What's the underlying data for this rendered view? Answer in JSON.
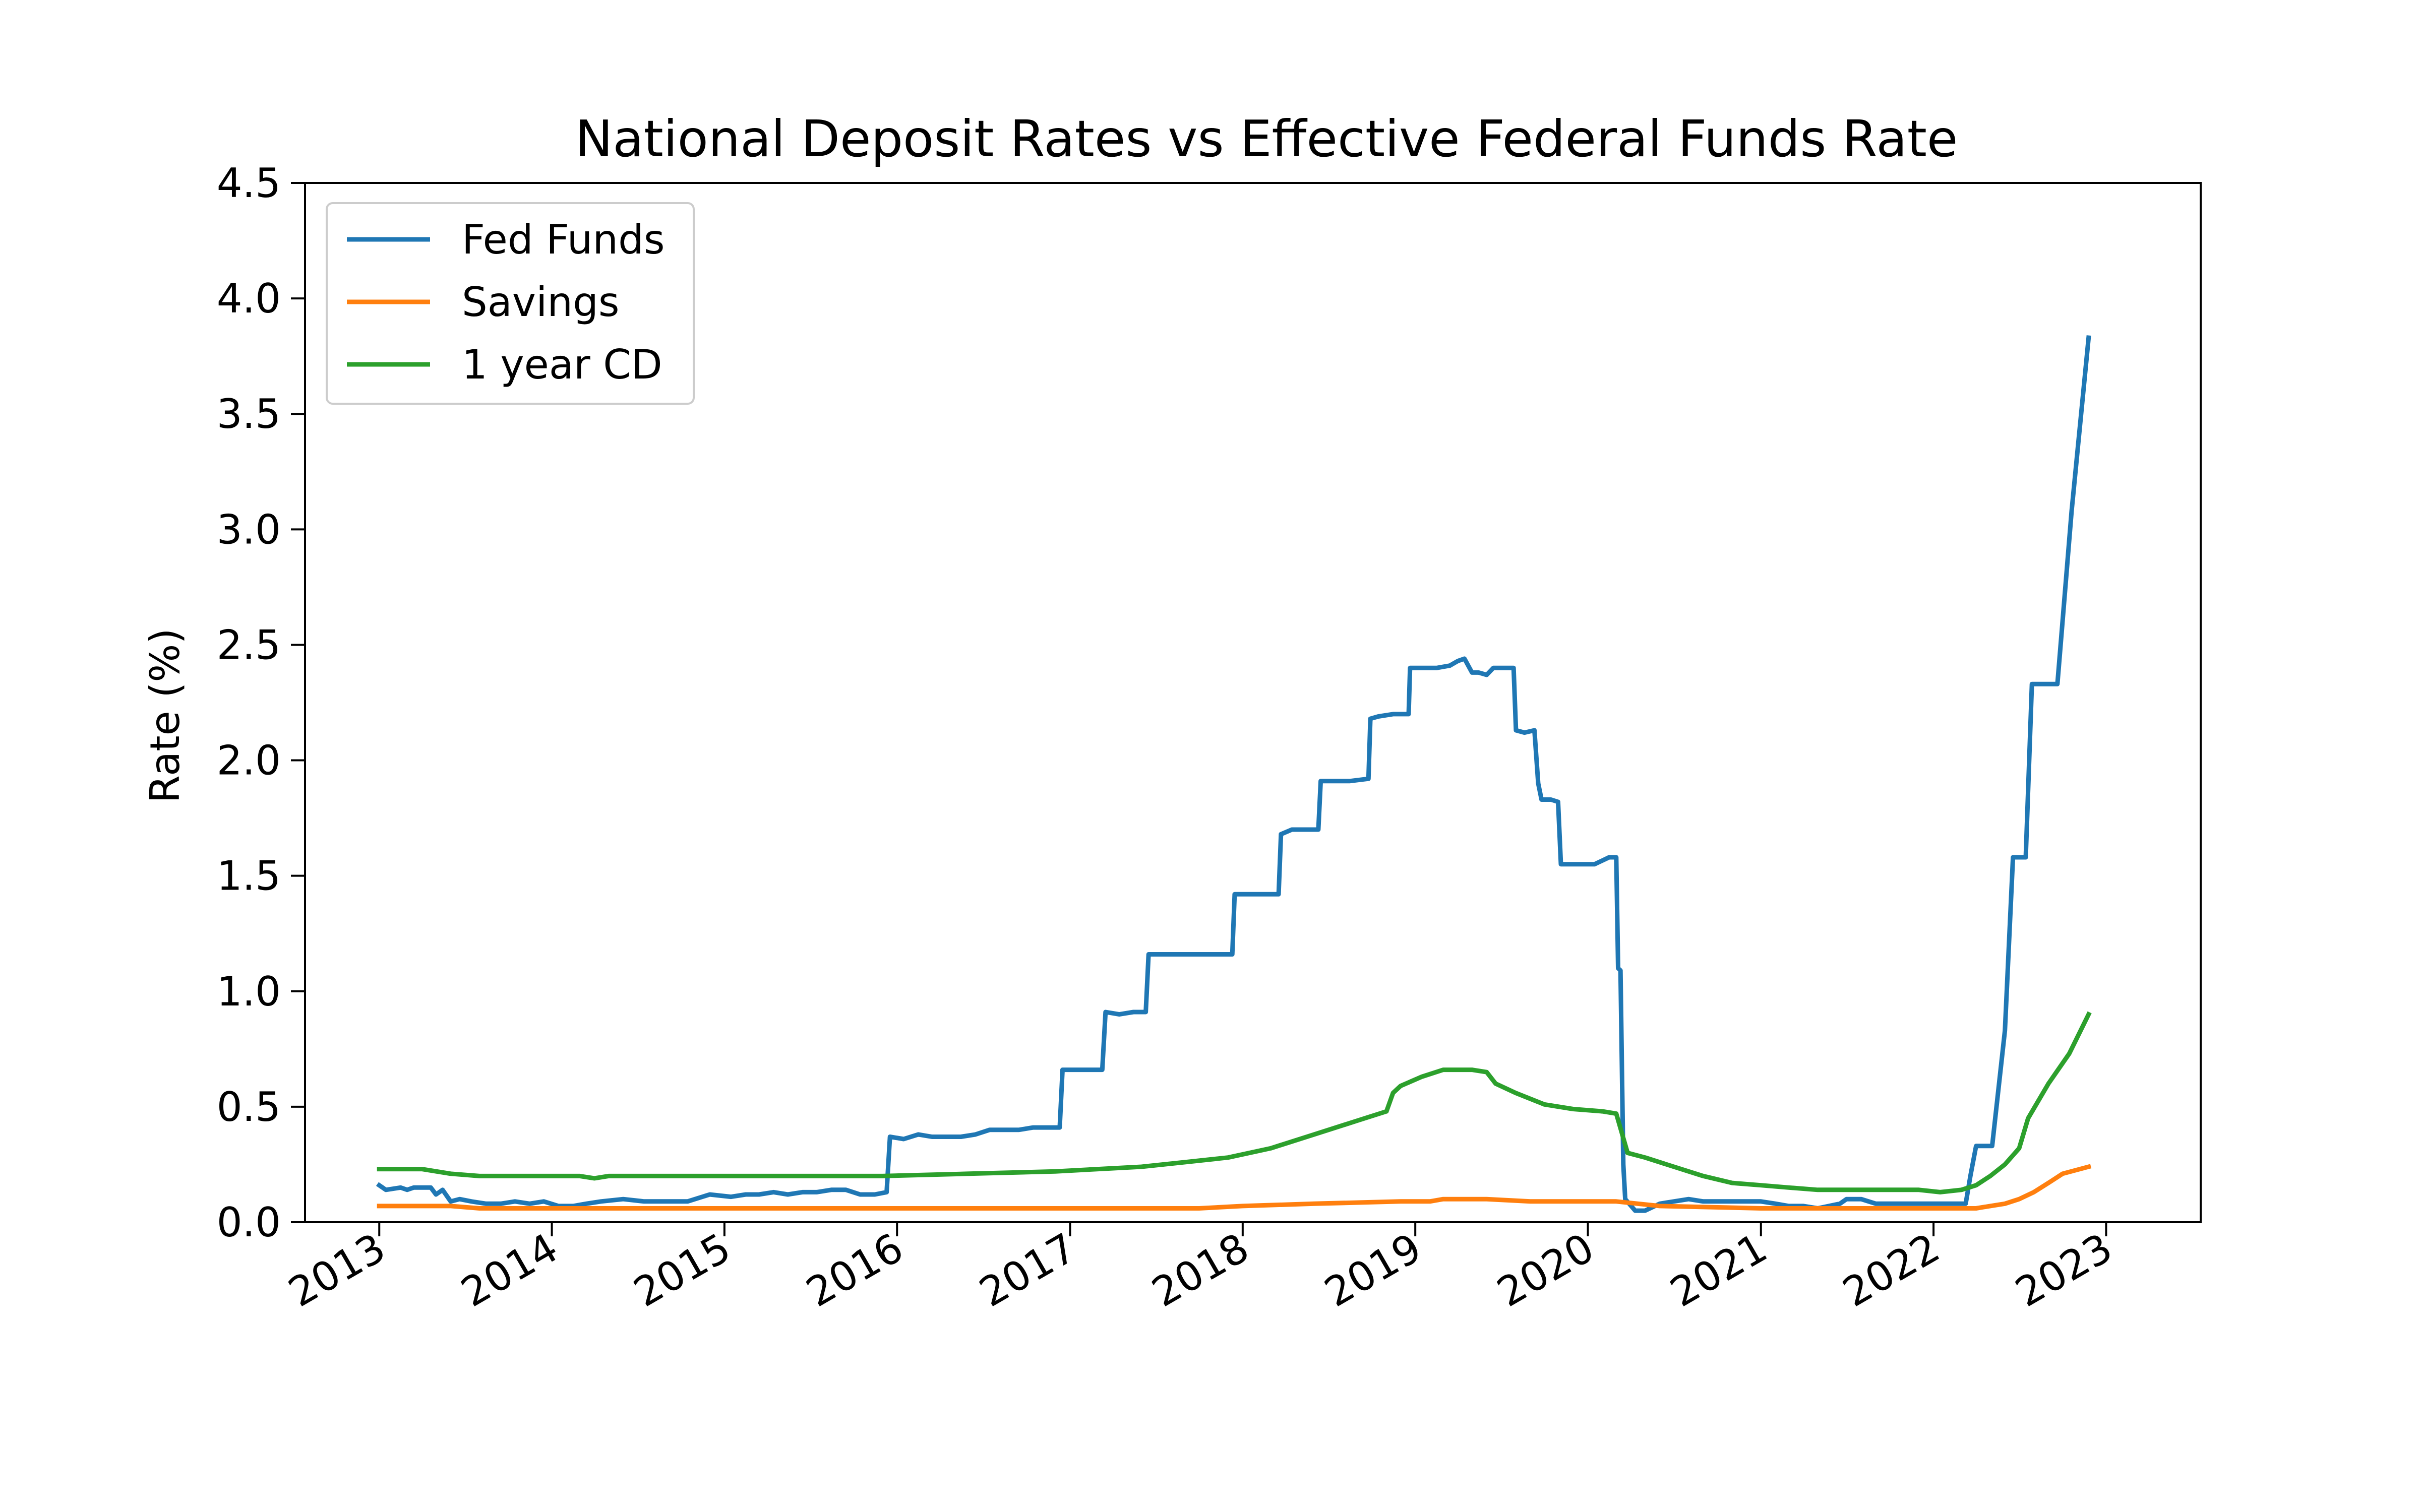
{
  "chart_data": {
    "type": "line",
    "title": "National Deposit Rates vs Effective Federal Funds Rate",
    "xlabel": "",
    "ylabel": "Rate (%)",
    "xlim": [
      "2012-07-28",
      "2023-07-20"
    ],
    "ylim": [
      0.0,
      4.5
    ],
    "x_ticks": [
      "2013",
      "2014",
      "2015",
      "2016",
      "2017",
      "2018",
      "2019",
      "2020",
      "2021",
      "2022",
      "2023"
    ],
    "y_ticks": [
      "0.0",
      "0.5",
      "1.0",
      "1.5",
      "2.0",
      "2.5",
      "3.0",
      "3.5",
      "4.0",
      "4.5"
    ],
    "grid": false,
    "legend_position": "upper-left",
    "series": [
      {
        "name": "Fed Funds",
        "color": "#1f77b4",
        "points": [
          [
            "2013-01-01",
            0.16
          ],
          [
            "2013-01-15",
            0.14
          ],
          [
            "2013-02-15",
            0.15
          ],
          [
            "2013-03-01",
            0.14
          ],
          [
            "2013-03-15",
            0.15
          ],
          [
            "2013-04-01",
            0.15
          ],
          [
            "2013-04-20",
            0.15
          ],
          [
            "2013-05-01",
            0.12
          ],
          [
            "2013-05-15",
            0.14
          ],
          [
            "2013-06-01",
            0.09
          ],
          [
            "2013-06-20",
            0.1
          ],
          [
            "2013-07-15",
            0.09
          ],
          [
            "2013-08-15",
            0.08
          ],
          [
            "2013-09-15",
            0.08
          ],
          [
            "2013-10-15",
            0.09
          ],
          [
            "2013-11-15",
            0.08
          ],
          [
            "2013-12-15",
            0.09
          ],
          [
            "2014-01-15",
            0.07
          ],
          [
            "2014-02-15",
            0.07
          ],
          [
            "2014-03-15",
            0.08
          ],
          [
            "2014-04-15",
            0.09
          ],
          [
            "2014-06-01",
            0.1
          ],
          [
            "2014-07-15",
            0.09
          ],
          [
            "2014-09-01",
            0.09
          ],
          [
            "2014-10-15",
            0.09
          ],
          [
            "2014-12-01",
            0.12
          ],
          [
            "2015-01-15",
            0.11
          ],
          [
            "2015-02-15",
            0.12
          ],
          [
            "2015-03-15",
            0.12
          ],
          [
            "2015-04-15",
            0.13
          ],
          [
            "2015-05-15",
            0.12
          ],
          [
            "2015-06-15",
            0.13
          ],
          [
            "2015-07-15",
            0.13
          ],
          [
            "2015-08-15",
            0.14
          ],
          [
            "2015-09-15",
            0.14
          ],
          [
            "2015-10-15",
            0.12
          ],
          [
            "2015-11-15",
            0.12
          ],
          [
            "2015-12-10",
            0.13
          ],
          [
            "2015-12-17",
            0.37
          ],
          [
            "2016-01-15",
            0.36
          ],
          [
            "2016-02-15",
            0.38
          ],
          [
            "2016-03-15",
            0.37
          ],
          [
            "2016-04-15",
            0.37
          ],
          [
            "2016-05-15",
            0.37
          ],
          [
            "2016-06-15",
            0.38
          ],
          [
            "2016-07-15",
            0.4
          ],
          [
            "2016-08-15",
            0.4
          ],
          [
            "2016-09-15",
            0.4
          ],
          [
            "2016-10-15",
            0.41
          ],
          [
            "2016-11-15",
            0.41
          ],
          [
            "2016-12-10",
            0.41
          ],
          [
            "2016-12-16",
            0.66
          ],
          [
            "2017-01-15",
            0.66
          ],
          [
            "2017-02-15",
            0.66
          ],
          [
            "2017-03-10",
            0.66
          ],
          [
            "2017-03-17",
            0.91
          ],
          [
            "2017-04-15",
            0.9
          ],
          [
            "2017-05-15",
            0.91
          ],
          [
            "2017-06-10",
            0.91
          ],
          [
            "2017-06-16",
            1.16
          ],
          [
            "2017-08-15",
            1.16
          ],
          [
            "2017-10-15",
            1.16
          ],
          [
            "2017-12-10",
            1.16
          ],
          [
            "2017-12-15",
            1.42
          ],
          [
            "2018-01-15",
            1.42
          ],
          [
            "2018-02-15",
            1.42
          ],
          [
            "2018-03-18",
            1.42
          ],
          [
            "2018-03-23",
            1.68
          ],
          [
            "2018-04-15",
            1.7
          ],
          [
            "2018-05-15",
            1.7
          ],
          [
            "2018-06-10",
            1.7
          ],
          [
            "2018-06-15",
            1.91
          ],
          [
            "2018-07-15",
            1.91
          ],
          [
            "2018-08-15",
            1.91
          ],
          [
            "2018-09-24",
            1.92
          ],
          [
            "2018-09-28",
            2.18
          ],
          [
            "2018-10-15",
            2.19
          ],
          [
            "2018-11-15",
            2.2
          ],
          [
            "2018-12-18",
            2.2
          ],
          [
            "2018-12-21",
            2.4
          ],
          [
            "2019-01-15",
            2.4
          ],
          [
            "2019-02-15",
            2.4
          ],
          [
            "2019-03-15",
            2.41
          ],
          [
            "2019-04-01",
            2.43
          ],
          [
            "2019-04-15",
            2.44
          ],
          [
            "2019-05-01",
            2.38
          ],
          [
            "2019-05-15",
            2.38
          ],
          [
            "2019-06-01",
            2.37
          ],
          [
            "2019-06-15",
            2.4
          ],
          [
            "2019-07-01",
            2.4
          ],
          [
            "2019-07-28",
            2.4
          ],
          [
            "2019-08-02",
            2.13
          ],
          [
            "2019-08-20",
            2.12
          ],
          [
            "2019-09-10",
            2.13
          ],
          [
            "2019-09-18",
            1.9
          ],
          [
            "2019-09-25",
            1.83
          ],
          [
            "2019-10-15",
            1.83
          ],
          [
            "2019-10-30",
            1.82
          ],
          [
            "2019-11-05",
            1.55
          ],
          [
            "2019-12-15",
            1.55
          ],
          [
            "2020-01-15",
            1.55
          ],
          [
            "2020-02-15",
            1.58
          ],
          [
            "2020-03-01",
            1.58
          ],
          [
            "2020-03-05",
            1.1
          ],
          [
            "2020-03-10",
            1.09
          ],
          [
            "2020-03-16",
            0.25
          ],
          [
            "2020-03-20",
            0.1
          ],
          [
            "2020-04-10",
            0.05
          ],
          [
            "2020-05-01",
            0.05
          ],
          [
            "2020-06-01",
            0.08
          ],
          [
            "2020-07-01",
            0.09
          ],
          [
            "2020-08-01",
            0.1
          ],
          [
            "2020-09-01",
            0.09
          ],
          [
            "2020-10-01",
            0.09
          ],
          [
            "2020-11-01",
            0.09
          ],
          [
            "2020-12-01",
            0.09
          ],
          [
            "2021-01-01",
            0.09
          ],
          [
            "2021-02-01",
            0.08
          ],
          [
            "2021-03-01",
            0.07
          ],
          [
            "2021-04-01",
            0.07
          ],
          [
            "2021-05-01",
            0.06
          ],
          [
            "2021-06-17",
            0.08
          ],
          [
            "2021-07-01",
            0.1
          ],
          [
            "2021-08-01",
            0.1
          ],
          [
            "2021-09-01",
            0.08
          ],
          [
            "2021-11-01",
            0.08
          ],
          [
            "2022-01-01",
            0.08
          ],
          [
            "2022-02-01",
            0.08
          ],
          [
            "2022-03-10",
            0.08
          ],
          [
            "2022-03-20",
            0.2
          ],
          [
            "2022-04-01",
            0.33
          ],
          [
            "2022-05-01",
            0.33
          ],
          [
            "2022-05-05",
            0.33
          ],
          [
            "2022-06-01",
            0.83
          ],
          [
            "2022-06-18",
            1.58
          ],
          [
            "2022-07-15",
            1.58
          ],
          [
            "2022-07-28",
            2.33
          ],
          [
            "2022-09-20",
            2.33
          ],
          [
            "2022-10-20",
            3.08
          ],
          [
            "2022-11-25",
            3.83
          ]
        ]
      },
      {
        "name": "Savings",
        "color": "#ff7f0e",
        "points": [
          [
            "2013-01-01",
            0.07
          ],
          [
            "2013-06-01",
            0.07
          ],
          [
            "2013-08-01",
            0.06
          ],
          [
            "2014-12-01",
            0.06
          ],
          [
            "2016-06-01",
            0.06
          ],
          [
            "2017-10-01",
            0.06
          ],
          [
            "2018-01-01",
            0.07
          ],
          [
            "2018-06-01",
            0.08
          ],
          [
            "2018-12-01",
            0.09
          ],
          [
            "2019-02-01",
            0.09
          ],
          [
            "2019-03-01",
            0.1
          ],
          [
            "2019-06-01",
            0.1
          ],
          [
            "2019-09-01",
            0.09
          ],
          [
            "2020-03-01",
            0.09
          ],
          [
            "2020-06-01",
            0.07
          ],
          [
            "2021-01-01",
            0.06
          ],
          [
            "2021-06-01",
            0.06
          ],
          [
            "2022-01-01",
            0.06
          ],
          [
            "2022-04-01",
            0.06
          ],
          [
            "2022-05-01",
            0.07
          ],
          [
            "2022-06-01",
            0.08
          ],
          [
            "2022-07-01",
            0.1
          ],
          [
            "2022-08-01",
            0.13
          ],
          [
            "2022-09-01",
            0.17
          ],
          [
            "2022-10-01",
            0.21
          ],
          [
            "2022-11-25",
            0.24
          ]
        ]
      },
      {
        "name": "1 year CD",
        "color": "#2ca02c",
        "points": [
          [
            "2013-01-01",
            0.23
          ],
          [
            "2013-04-01",
            0.23
          ],
          [
            "2013-06-01",
            0.21
          ],
          [
            "2013-08-01",
            0.2
          ],
          [
            "2014-03-01",
            0.2
          ],
          [
            "2014-04-01",
            0.19
          ],
          [
            "2014-05-01",
            0.2
          ],
          [
            "2015-01-01",
            0.2
          ],
          [
            "2015-06-01",
            0.2
          ],
          [
            "2015-12-01",
            0.2
          ],
          [
            "2016-06-01",
            0.21
          ],
          [
            "2016-12-01",
            0.22
          ],
          [
            "2017-03-01",
            0.23
          ],
          [
            "2017-06-01",
            0.24
          ],
          [
            "2017-09-01",
            0.26
          ],
          [
            "2017-12-01",
            0.28
          ],
          [
            "2018-03-01",
            0.32
          ],
          [
            "2018-06-01",
            0.38
          ],
          [
            "2018-09-01",
            0.44
          ],
          [
            "2018-11-01",
            0.48
          ],
          [
            "2018-11-15",
            0.56
          ],
          [
            "2018-12-01",
            0.59
          ],
          [
            "2019-01-15",
            0.63
          ],
          [
            "2019-03-01",
            0.66
          ],
          [
            "2019-05-01",
            0.66
          ],
          [
            "2019-06-01",
            0.65
          ],
          [
            "2019-06-20",
            0.6
          ],
          [
            "2019-08-01",
            0.56
          ],
          [
            "2019-10-01",
            0.51
          ],
          [
            "2019-12-01",
            0.49
          ],
          [
            "2020-02-01",
            0.48
          ],
          [
            "2020-03-01",
            0.47
          ],
          [
            "2020-03-25",
            0.3
          ],
          [
            "2020-05-01",
            0.28
          ],
          [
            "2020-07-01",
            0.24
          ],
          [
            "2020-09-01",
            0.2
          ],
          [
            "2020-11-01",
            0.17
          ],
          [
            "2021-01-01",
            0.16
          ],
          [
            "2021-03-01",
            0.15
          ],
          [
            "2021-05-01",
            0.14
          ],
          [
            "2021-08-01",
            0.14
          ],
          [
            "2021-12-01",
            0.14
          ],
          [
            "2022-01-15",
            0.13
          ],
          [
            "2022-03-01",
            0.14
          ],
          [
            "2022-04-01",
            0.16
          ],
          [
            "2022-05-01",
            0.2
          ],
          [
            "2022-06-01",
            0.25
          ],
          [
            "2022-07-01",
            0.32
          ],
          [
            "2022-07-20",
            0.45
          ],
          [
            "2022-09-01",
            0.6
          ],
          [
            "2022-10-15",
            0.73
          ],
          [
            "2022-11-25",
            0.9
          ]
        ]
      }
    ]
  }
}
